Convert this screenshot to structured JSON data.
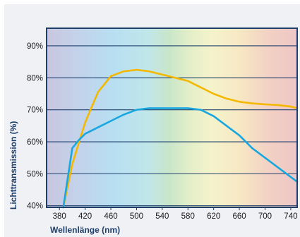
{
  "chart_data": {
    "type": "line",
    "title": "",
    "xlabel": "Wellenlänge (nm)",
    "ylabel": "Lichttransmission (%)",
    "xlim": [
      360,
      750
    ],
    "ylim": [
      39.5,
      95.5
    ],
    "x_ticks": [
      "380",
      "420",
      "460",
      "500",
      "540",
      "580",
      "620",
      "660",
      "700",
      "740"
    ],
    "y_ticks": [
      "40%",
      "50%",
      "60%",
      "70%",
      "80%",
      "90%"
    ],
    "grid": "horizontal",
    "legend": "none",
    "background": "visible-spectrum gradient",
    "series": [
      {
        "color": "#f5b800",
        "x": [
          386,
          400,
          420,
          440,
          460,
          480,
          500,
          520,
          540,
          560,
          580,
          600,
          620,
          640,
          660,
          680,
          700,
          720,
          740,
          750
        ],
        "y": [
          39.5,
          53,
          66,
          75.5,
          80.5,
          82,
          82.5,
          82,
          81,
          80,
          79,
          77,
          75,
          73.5,
          72.5,
          72,
          71.7,
          71.5,
          71,
          70.5
        ]
      },
      {
        "color": "#1aa7e0",
        "x": [
          386,
          400,
          410,
          420,
          440,
          460,
          480,
          500,
          520,
          540,
          560,
          580,
          600,
          620,
          640,
          660,
          680,
          700,
          720,
          740,
          750
        ],
        "y": [
          39.5,
          58,
          60.5,
          62.5,
          64.5,
          66.5,
          68.5,
          70,
          70.5,
          70.5,
          70.5,
          70.5,
          70,
          68,
          65,
          62,
          58,
          55,
          52,
          49,
          47.5
        ]
      }
    ]
  }
}
